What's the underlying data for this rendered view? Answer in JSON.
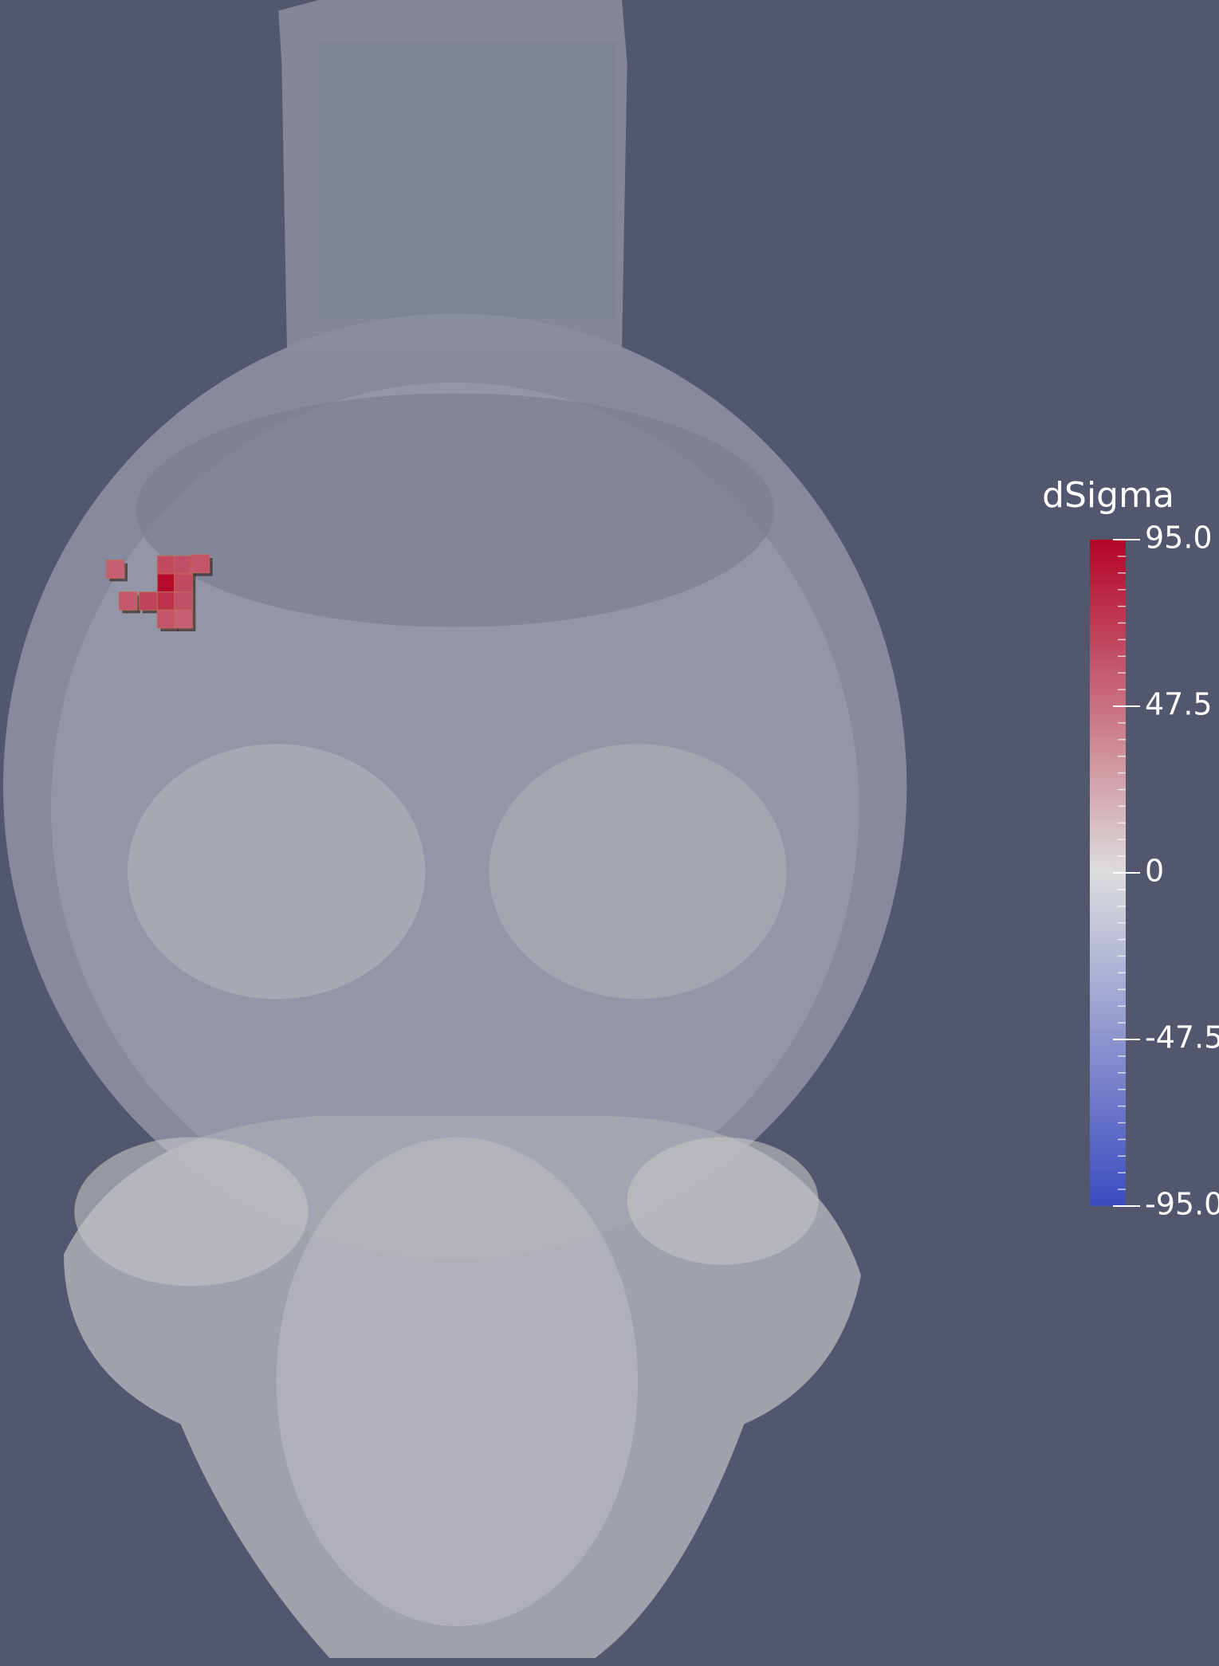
{
  "colorbar": {
    "title": "dSigma",
    "range": [
      -95,
      95
    ],
    "ticks": [
      {
        "value": 95,
        "label": "95.0"
      },
      47.5,
      0,
      -47.5,
      {
        "value": -95,
        "label": "-95.0"
      }
    ],
    "colors": [
      "#3b4cc0",
      "#dddddd",
      "#b40426"
    ]
  },
  "voxels": {
    "values": [
      55,
      65,
      62,
      60,
      92,
      65,
      58,
      68,
      75,
      62,
      60,
      55
    ]
  }
}
